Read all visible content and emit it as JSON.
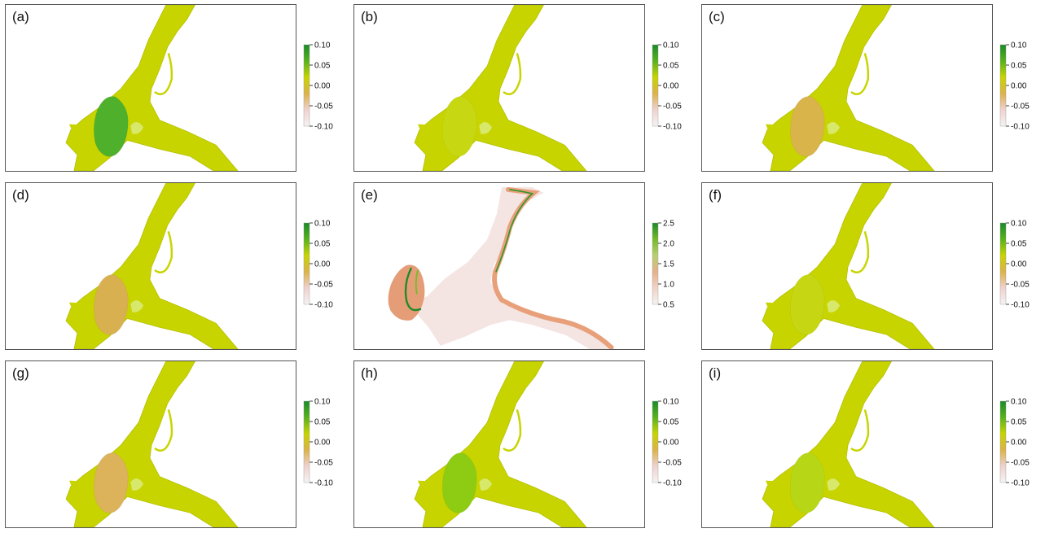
{
  "colors": {
    "river": "#c8d400",
    "edge": "#b4c000",
    "dark_green": "#1e8a28",
    "mid_green": "#6cb31e",
    "yellow_green": "#a9cc10",
    "yellow": "#c8d400",
    "tan": "#d9b44a",
    "salmon": "#e8a07a",
    "pale": "#f3e2e0"
  },
  "standard_legend": {
    "ticks": [
      "0.10",
      "0.05",
      "0.00",
      "-0.05",
      "-0.10"
    ],
    "scale_values": [
      0.1,
      0.05,
      0.0,
      -0.05,
      -0.1
    ],
    "gradient": [
      "#1b8a2a",
      "#58b21c",
      "#c7d400",
      "#dcb24a",
      "#efd2cf",
      "#f5f3f3"
    ]
  },
  "depth_legend": {
    "ticks": [
      "2.5",
      "2.0",
      "1.5",
      "1.0",
      "0.5"
    ],
    "scale_values": [
      2.5,
      2.0,
      1.5,
      1.0,
      0.5
    ],
    "gradient": [
      "#1b8a2a",
      "#74ba28",
      "#b9cf70",
      "#e5b18b",
      "#f1d2c5",
      "#f5f3f3"
    ]
  },
  "panels": [
    {
      "label": "(a)",
      "lake_fill": "#4fb02b",
      "legend": "standard"
    },
    {
      "label": "(b)",
      "lake_fill": "#c7d812",
      "legend": "standard"
    },
    {
      "label": "(c)",
      "lake_fill": "#d9b44a",
      "legend": "standard"
    },
    {
      "label": "(d)",
      "lake_fill": "#d8b04f",
      "legend": "standard"
    },
    {
      "label": "(e)",
      "lake_fill": "#e59d78",
      "legend": "depth"
    },
    {
      "label": "(f)",
      "lake_fill": "#c6d612",
      "legend": "standard"
    },
    {
      "label": "(g)",
      "lake_fill": "#dcb25b",
      "legend": "standard"
    },
    {
      "label": "(h)",
      "lake_fill": "#8dcc12",
      "legend": "standard"
    },
    {
      "label": "(i)",
      "lake_fill": "#b7d716",
      "legend": "standard"
    }
  ]
}
